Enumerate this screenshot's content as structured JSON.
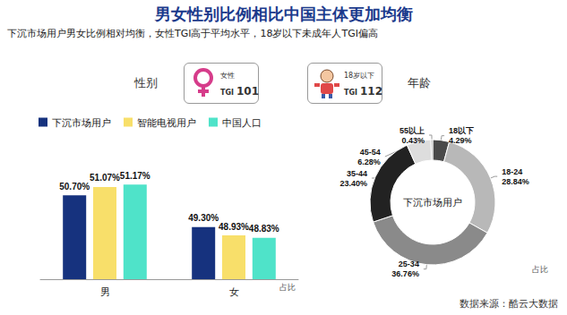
{
  "header": {
    "title": "男女性别比例相比中国主体更加均衡",
    "subtitle": "下沉市场用户男女比例相对均衡，女性TGI高于平均水平，18岁以下未成年人TGI偏高"
  },
  "source": "数据来源：酷云大数据",
  "chart_data": [
    {
      "type": "bar",
      "title": "性别",
      "badge": {
        "label": "女性",
        "tgi_label": "TGI",
        "tgi": 101
      },
      "unit_label": "占比",
      "categories": [
        "男",
        "女"
      ],
      "series": [
        {
          "name": "下沉市场用户",
          "color": "#16327e",
          "values": [
            50.7,
            49.3
          ],
          "value_labels": [
            "50.70%",
            "49.30%"
          ]
        },
        {
          "name": "智能电视用户",
          "color": "#f8df6a",
          "values": [
            51.07,
            48.93
          ],
          "value_labels": [
            "51.07%",
            "48.93%"
          ]
        },
        {
          "name": "中国人口",
          "color": "#4fe3c9",
          "values": [
            51.17,
            48.83
          ],
          "value_labels": [
            "51.17%",
            "48.83%"
          ]
        }
      ],
      "ylim": [
        47,
        53
      ],
      "tick_labels": false,
      "grid": false,
      "legend": "top-left",
      "data_labels": true
    },
    {
      "type": "pie",
      "title": "年龄",
      "badge": {
        "label": "18岁以下",
        "tgi_label": "TGI",
        "tgi": 112
      },
      "unit_label": "占比",
      "center_text": "下沉市场用户",
      "categories": [
        "18以下",
        "18-24",
        "25-34",
        "35-44",
        "45-54",
        "55以上"
      ],
      "values": [
        4.29,
        28.84,
        36.76,
        23.4,
        6.28,
        0.43
      ],
      "value_labels": [
        "4.29%",
        "28.84%",
        "36.76%",
        "23.40%",
        "6.28%",
        "0.43%"
      ],
      "colors": [
        "#4a4a4a",
        "#b8b8b8",
        "#8a8a8a",
        "#222222",
        "#dddddd",
        "#a0a0a0"
      ],
      "data_labels": true
    }
  ]
}
